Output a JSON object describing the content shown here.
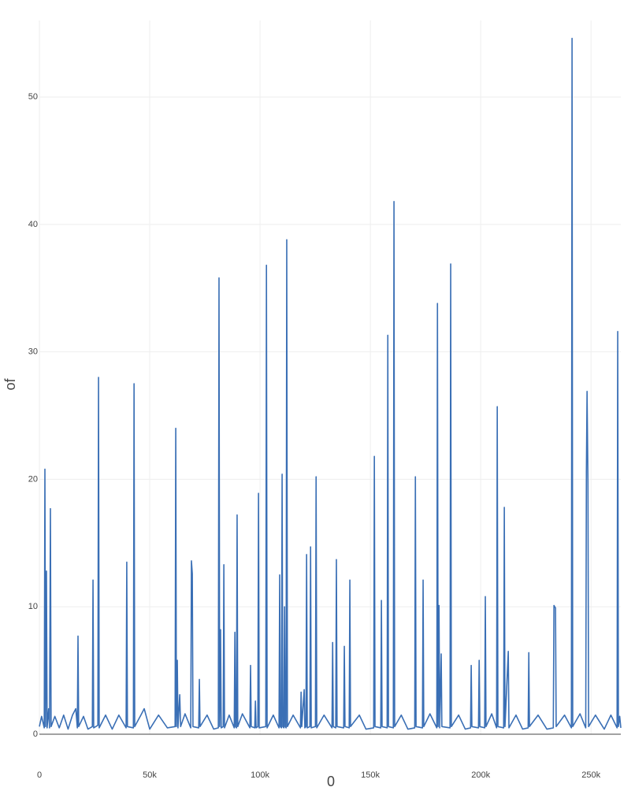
{
  "chart_data": {
    "type": "line",
    "y_label": "of",
    "x_label": "0",
    "color": "#3a6fb5",
    "grid": true,
    "xlim": [
      0,
      263500
    ],
    "ylim": [
      0,
      56
    ],
    "xticks": [
      0,
      {
        "value": 50000,
        "label": "50k"
      },
      {
        "value": 100000,
        "label": "100k"
      },
      {
        "value": 150000,
        "label": "150k"
      },
      {
        "value": 200000,
        "label": "200k"
      },
      {
        "value": 250000,
        "label": "250k"
      }
    ],
    "yticks": [
      0,
      10,
      20,
      30,
      40,
      50
    ],
    "x": [
      0,
      1000,
      2200,
      2500,
      2800,
      3200,
      3500,
      4200,
      4600,
      5000,
      5300,
      7000,
      9000,
      11000,
      13000,
      15000,
      16500,
      17200,
      17500,
      17800,
      20000,
      22000,
      24000,
      24300,
      24600,
      26500,
      26800,
      27100,
      30000,
      33000,
      36000,
      39300,
      39600,
      39900,
      42600,
      42900,
      43200,
      46000,
      47500,
      50000,
      54000,
      58000,
      61500,
      61800,
      62100,
      62500,
      62800,
      63600,
      64000,
      66000,
      68600,
      68900,
      69300,
      69600,
      72200,
      72500,
      72800,
      76000,
      79000,
      81100,
      81400,
      81700,
      82100,
      82400,
      83300,
      83600,
      83900,
      86000,
      88300,
      88600,
      88900,
      89300,
      89600,
      89900,
      92000,
      95400,
      95700,
      96000,
      97600,
      97900,
      98200,
      99000,
      99300,
      99600,
      102600,
      102900,
      103200,
      106000,
      108600,
      108900,
      109200,
      109700,
      110000,
      110300,
      110800,
      111100,
      111400,
      111800,
      112100,
      112400,
      115000,
      118300,
      118600,
      118900,
      120000,
      120300,
      120800,
      121100,
      121400,
      122600,
      122900,
      123200,
      125100,
      125400,
      125700,
      129000,
      132600,
      132900,
      133200,
      134300,
      134600,
      134900,
      137900,
      138200,
      138500,
      140400,
      140700,
      141000,
      145000,
      148000,
      151500,
      151800,
      152100,
      154700,
      155000,
      155300,
      157600,
      157900,
      158200,
      160400,
      160700,
      161000,
      164000,
      167000,
      170100,
      170400,
      170700,
      173600,
      173900,
      174200,
      177000,
      180100,
      180400,
      180700,
      181100,
      181400,
      182100,
      182400,
      186100,
      186400,
      186700,
      190000,
      193000,
      195400,
      195700,
      196000,
      199000,
      199300,
      199600,
      201800,
      202100,
      202400,
      205000,
      207200,
      207500,
      207800,
      210400,
      210700,
      211000,
      212500,
      212800,
      216000,
      219000,
      221500,
      221800,
      222100,
      226000,
      230000,
      232900,
      233200,
      233900,
      234200,
      238000,
      241100,
      241400,
      241700,
      245000,
      247600,
      247900,
      248200,
      248600,
      248900,
      252000,
      256000,
      259000,
      261800,
      262100,
      262400,
      263000,
      263500
    ],
    "values": [
      0.6,
      1.4,
      0.5,
      20.8,
      0.6,
      12.8,
      0.5,
      2,
      0.5,
      17.7,
      0.6,
      1.4,
      0.5,
      1.5,
      0.4,
      1.5,
      2,
      0.5,
      7.7,
      0.6,
      1.4,
      0.4,
      0.6,
      12.1,
      0.5,
      0.7,
      28,
      0.5,
      1.5,
      0.4,
      1.5,
      0.5,
      13.5,
      0.6,
      0.5,
      27.5,
      0.6,
      1.5,
      2,
      0.4,
      1.5,
      0.5,
      0.6,
      24,
      0.6,
      5.8,
      0.5,
      3.1,
      0.6,
      1.6,
      0.5,
      13.6,
      12.6,
      0.6,
      0.5,
      4.3,
      0.6,
      1.5,
      0.4,
      0.5,
      35.8,
      0.6,
      8.2,
      0.5,
      0.6,
      13.3,
      0.5,
      1.5,
      0.5,
      8,
      0.6,
      0.5,
      17.2,
      0.6,
      1.6,
      0.5,
      5.4,
      0.6,
      0.5,
      2.6,
      0.5,
      0.6,
      18.9,
      0.5,
      0.6,
      36.8,
      0.5,
      1.5,
      0.5,
      12.5,
      0.6,
      0.5,
      20.4,
      0.6,
      0.5,
      10,
      0.6,
      0.5,
      38.8,
      0.6,
      1.5,
      0.5,
      3.3,
      0.6,
      3.5,
      0.5,
      0.6,
      14.1,
      0.5,
      0.6,
      14.7,
      0.5,
      0.6,
      20.2,
      0.5,
      1.5,
      0.5,
      7.2,
      0.6,
      0.5,
      13.7,
      0.6,
      0.5,
      6.9,
      0.6,
      0.5,
      12.1,
      0.6,
      1.5,
      0.4,
      0.5,
      21.8,
      0.6,
      0.5,
      10.5,
      0.6,
      0.5,
      31.3,
      0.6,
      0.5,
      41.8,
      0.6,
      1.5,
      0.4,
      0.5,
      20.2,
      0.6,
      0.5,
      12.1,
      0.6,
      1.6,
      0.5,
      33.8,
      0.6,
      10.1,
      0.5,
      6.3,
      0.6,
      0.5,
      36.9,
      0.6,
      1.5,
      0.4,
      0.5,
      5.4,
      0.6,
      0.5,
      5.8,
      0.6,
      0.5,
      10.8,
      0.6,
      1.6,
      0.5,
      25.7,
      0.6,
      0.5,
      17.8,
      0.6,
      6.5,
      0.5,
      1.5,
      0.4,
      0.5,
      6.4,
      0.6,
      1.5,
      0.4,
      0.5,
      10.1,
      9.9,
      0.6,
      1.5,
      0.5,
      54.6,
      0.6,
      1.6,
      0.5,
      20.6,
      26.9,
      19.8,
      0.6,
      1.5,
      0.4,
      1.5,
      0.5,
      31.6,
      0.6,
      1.4,
      0.5
    ]
  }
}
